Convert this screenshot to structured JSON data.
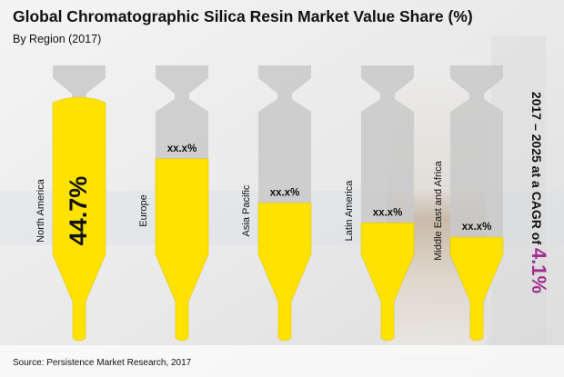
{
  "header": {
    "title": "Global Chromatographic Silica Resin Market Value Share (%)",
    "subtitle": "By Region (2017)"
  },
  "footer": {
    "source": "Source: Persistence Market Research, 2017"
  },
  "cagr": {
    "text": "2017 – 2025 at a CAGR of",
    "value": "4.1%"
  },
  "colors": {
    "fill": "#ffe200",
    "fill_edge": "#e6c500",
    "empty_tube": "#c9c9c9",
    "cagr_accent": "#a1308e"
  },
  "chart_data": {
    "type": "bar",
    "title": "Global Chromatographic Silica Resin Market Value Share (%)",
    "subtitle": "By Region (2017)",
    "categories": [
      "North America",
      "Europe",
      "Asia Pacific",
      "Latin America",
      "Middle East and Africa"
    ],
    "value_labels": [
      "44.7%",
      "xx.x%",
      "xx.x%",
      "xx.x%",
      "xx.x%"
    ],
    "fill_levels": [
      1.0,
      0.67,
      0.36,
      0.22,
      0.12
    ]
  }
}
